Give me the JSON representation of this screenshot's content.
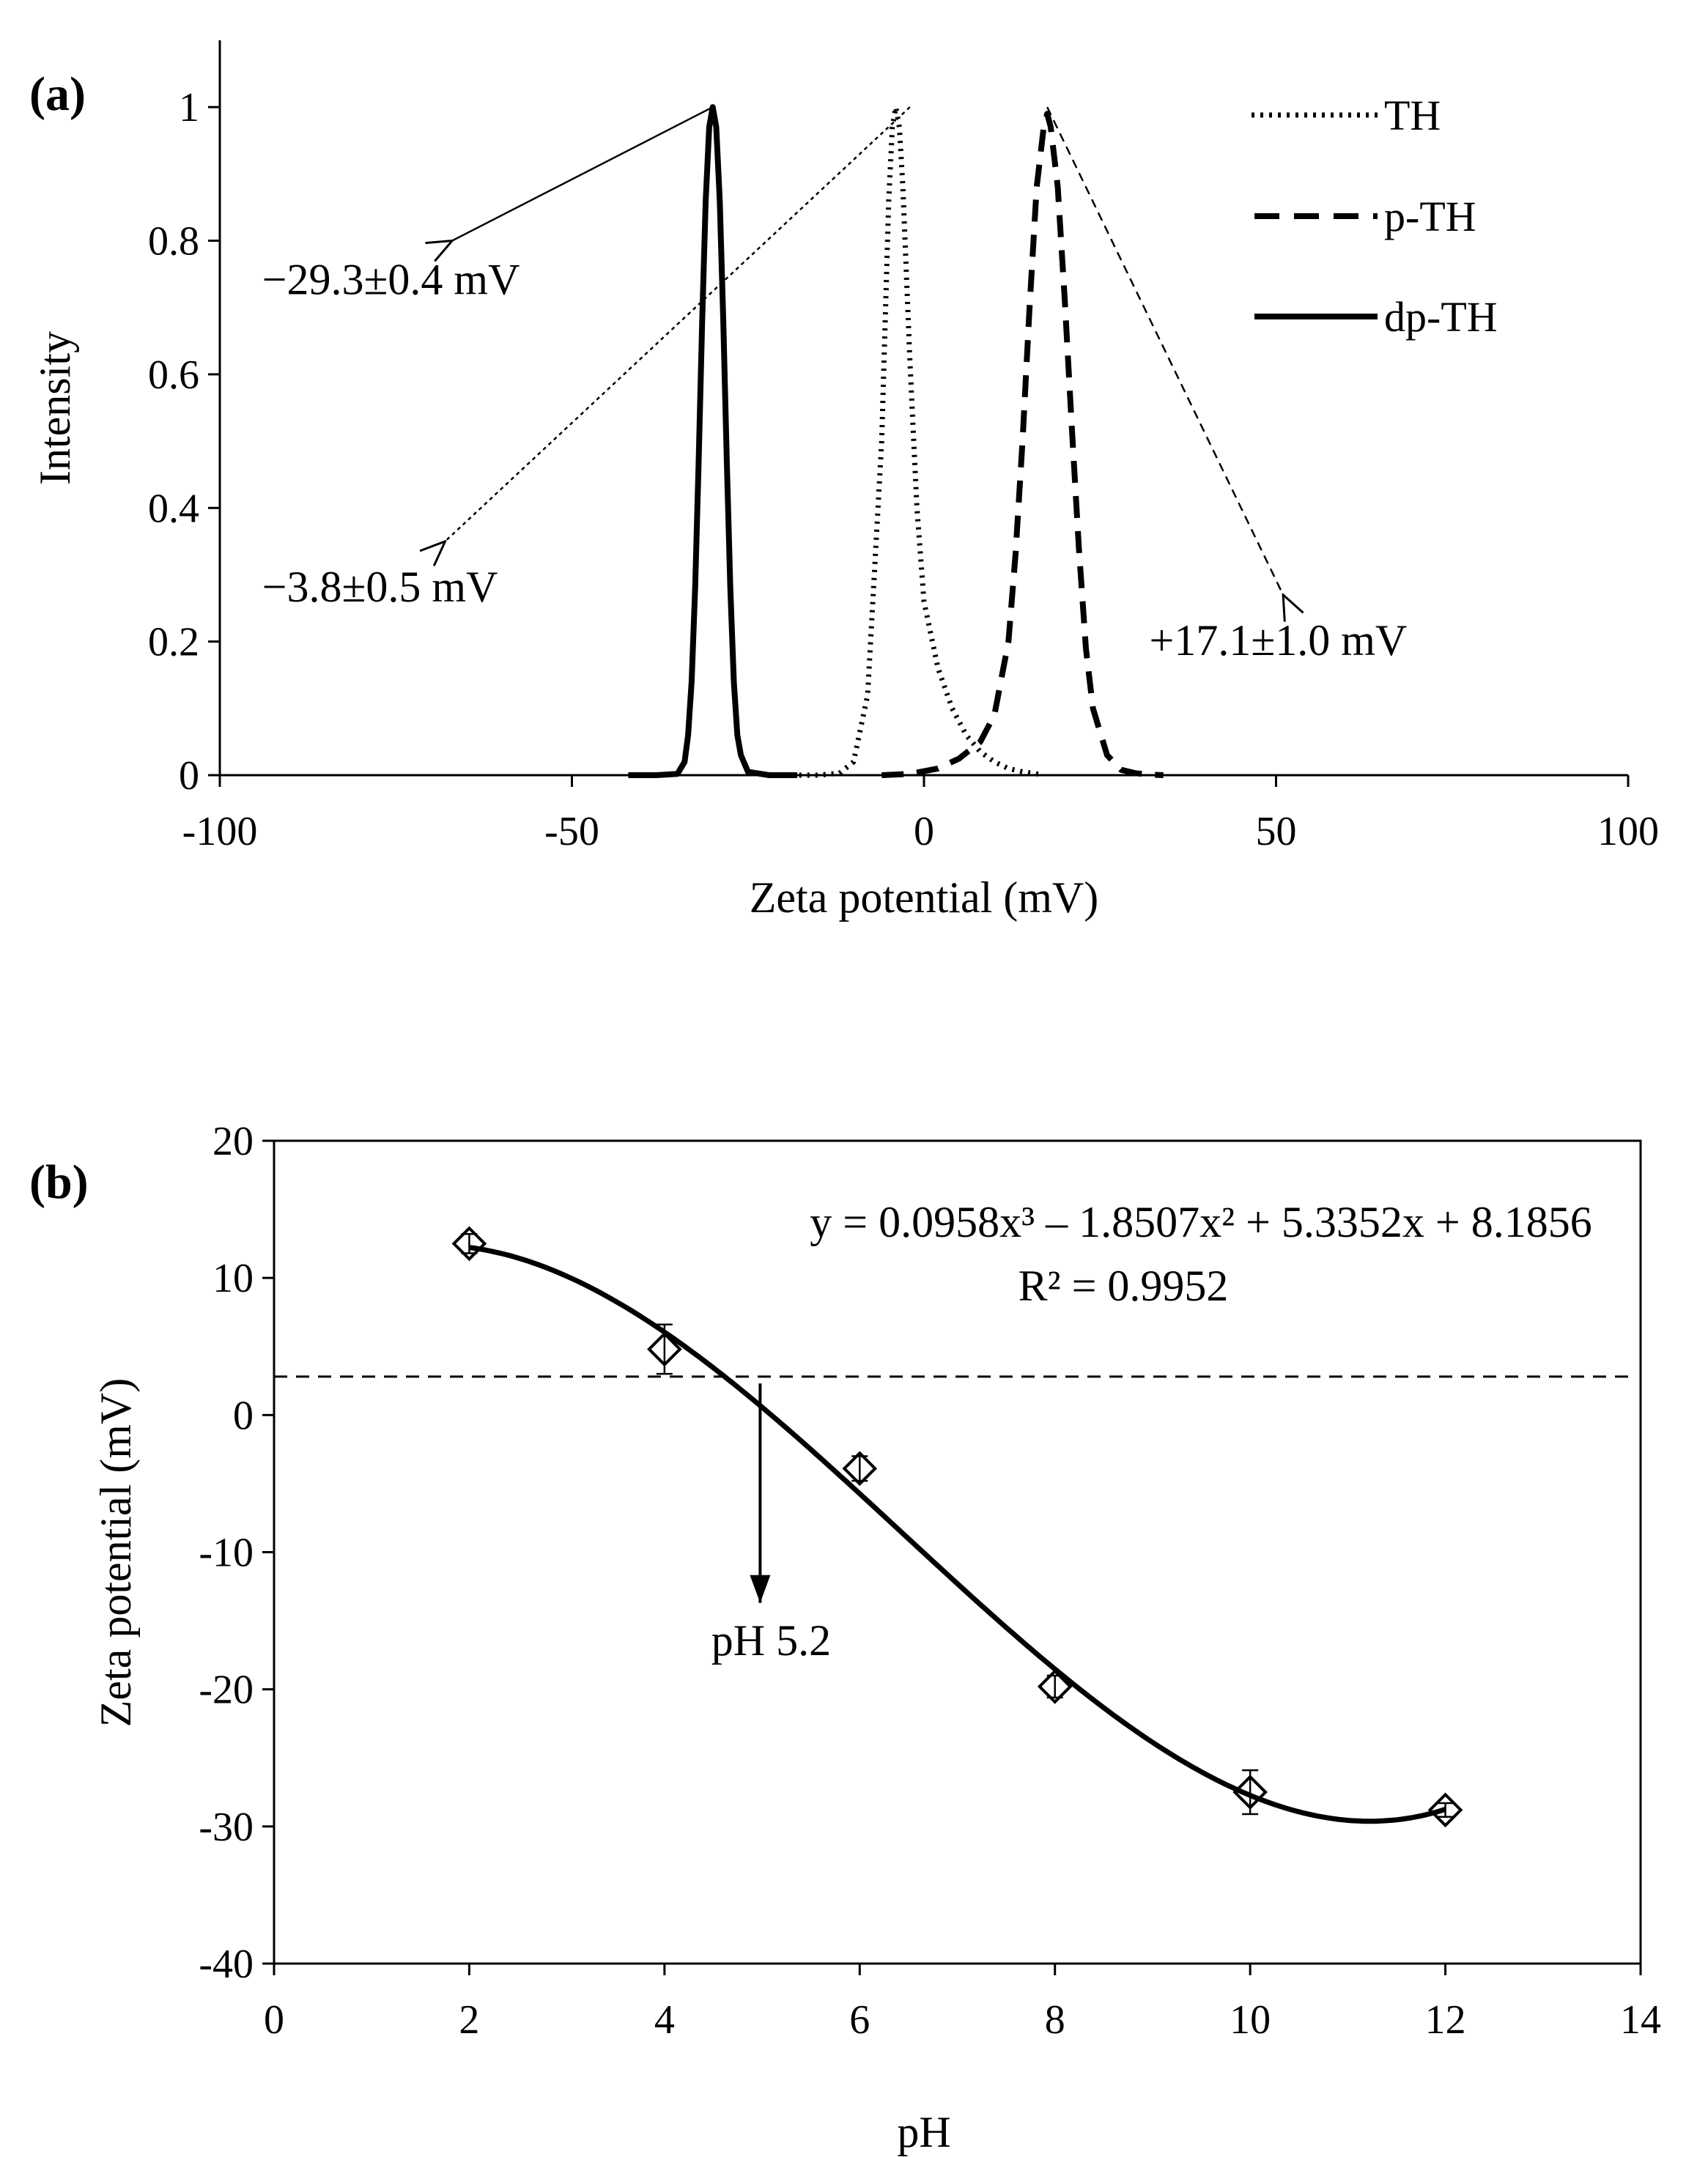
{
  "chart_data": [
    {
      "type": "line",
      "panel_label": "(a)",
      "title": "",
      "xlabel": "Zeta potential (mV)",
      "ylabel": "Intensity",
      "xlim": [
        -100,
        100
      ],
      "ylim": [
        0,
        1.1
      ],
      "xticks": [
        "-100",
        "-50",
        "0",
        "50",
        "100"
      ],
      "yticks": [
        "0",
        "0.2",
        "0.4",
        "0.6",
        "0.8",
        "1"
      ],
      "grid": false,
      "legend_position": "top-right",
      "series": [
        {
          "name": "TH",
          "style": "dotted",
          "x": [
            -20,
            -15,
            -12,
            -10,
            -8,
            -6,
            -5,
            -4.5,
            -4,
            -3.5,
            -3,
            -2,
            -1,
            0,
            2,
            4,
            6,
            8,
            10,
            12,
            14,
            16,
            17
          ],
          "y": [
            0,
            0,
            0.003,
            0.02,
            0.12,
            0.5,
            0.86,
            0.97,
            1.0,
            0.97,
            0.88,
            0.62,
            0.4,
            0.26,
            0.16,
            0.1,
            0.06,
            0.035,
            0.02,
            0.01,
            0.005,
            0.002,
            0
          ]
        },
        {
          "name": "p-TH",
          "style": "dashed",
          "x": [
            -6,
            -2,
            2,
            5,
            8,
            10,
            12,
            13,
            14,
            15,
            16,
            17,
            17.5,
            18,
            19,
            20,
            21,
            22,
            23,
            24,
            26,
            28,
            30,
            32,
            34
          ],
          "y": [
            0,
            0.002,
            0.01,
            0.025,
            0.05,
            0.09,
            0.2,
            0.33,
            0.5,
            0.7,
            0.88,
            0.97,
            0.99,
            0.97,
            0.88,
            0.71,
            0.52,
            0.34,
            0.19,
            0.1,
            0.03,
            0.008,
            0.003,
            0.001,
            0
          ]
        },
        {
          "name": "dp-TH",
          "style": "solid",
          "x": [
            -42,
            -38,
            -35,
            -34,
            -33.5,
            -33,
            -32.5,
            -32,
            -31.5,
            -31,
            -30.5,
            -30,
            -29.5,
            -29,
            -28.5,
            -28,
            -27.5,
            -27,
            -26.5,
            -26,
            -25,
            -22,
            -18
          ],
          "y": [
            0,
            0,
            0.002,
            0.02,
            0.06,
            0.14,
            0.28,
            0.47,
            0.68,
            0.86,
            0.97,
            1.0,
            0.97,
            0.86,
            0.68,
            0.47,
            0.28,
            0.14,
            0.06,
            0.03,
            0.005,
            0,
            0
          ]
        }
      ],
      "annotations": [
        {
          "text": "−29.3±0.4 mV",
          "series": "dp-TH",
          "arrow_from": [
            -30,
            1.0
          ],
          "arrow_to": [
            -67,
            0.8
          ],
          "arrow_style": "solid",
          "text_at": [
            -94,
            0.72
          ]
        },
        {
          "text": "−3.8±0.5 mV",
          "series": "TH",
          "arrow_from": [
            -2,
            1.0
          ],
          "arrow_to": [
            -68,
            0.35
          ],
          "arrow_style": "dotted",
          "text_at": [
            -94,
            0.26
          ]
        },
        {
          "text": "+17.1±1.0 mV",
          "series": "p-TH",
          "arrow_from": [
            17.5,
            1.0
          ],
          "arrow_to": [
            51,
            0.27
          ],
          "arrow_style": "dashed",
          "text_at": [
            32,
            0.18
          ]
        }
      ]
    },
    {
      "type": "scatter",
      "panel_label": "(b)",
      "title": "",
      "xlabel": "pH",
      "ylabel": "Zeta potential (mV)",
      "xlim": [
        0,
        14
      ],
      "ylim": [
        -40,
        20
      ],
      "xticks": [
        "0",
        "2",
        "4",
        "6",
        "8",
        "10",
        "12",
        "14"
      ],
      "yticks": [
        "-40",
        "-30",
        "-20",
        "-10",
        "0",
        "10",
        "20"
      ],
      "grid": false,
      "legend_position": "none",
      "series": [
        {
          "name": "Zeta potential",
          "marker": "diamond-open",
          "x": [
            2,
            4,
            6,
            8,
            10,
            12
          ],
          "y": [
            12.5,
            4.8,
            -3.9,
            -19.8,
            -27.5,
            -28.8
          ],
          "error": [
            0.7,
            1.8,
            0.9,
            0.8,
            1.6,
            0.5
          ]
        }
      ],
      "trendline": {
        "type": "polynomial",
        "order": 3,
        "coefficients": [
          0.0958,
          -1.8507,
          5.3352,
          8.1856
        ],
        "x_range": [
          2,
          12
        ],
        "equation_text": "y = 0.0958x³ – 1.8507x² + 5.3352x + 8.1856",
        "r2_text": "R² = 0.9952"
      },
      "reference_line": {
        "y": 2.8,
        "style": "dashed"
      },
      "annotations": [
        {
          "text": "pH 5.2",
          "arrow_from": [
            4.98,
            2.3
          ],
          "arrow_to": [
            4.98,
            -13.7
          ],
          "text_at": [
            4.48,
            -17.5
          ]
        }
      ]
    }
  ]
}
